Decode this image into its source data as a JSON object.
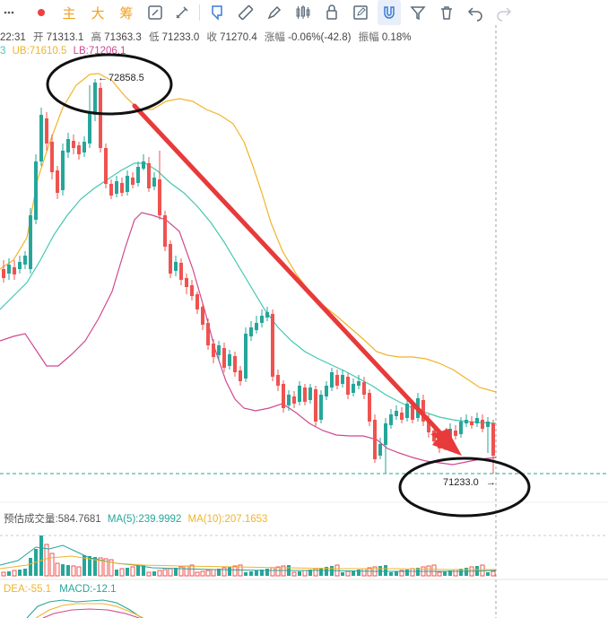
{
  "toolbar": {
    "items": [
      {
        "name": "more-icon",
        "glyph": "⋯"
      },
      {
        "name": "dot-icon",
        "glyph": "●"
      },
      {
        "text": "主"
      },
      {
        "text": "大"
      },
      {
        "text": "筹"
      }
    ]
  },
  "info": {
    "time": "22:31",
    "open_label": "开",
    "open": "71313.1",
    "high_label": "高",
    "high": "71363.3",
    "low_label": "低",
    "low": "71233.0",
    "close_label": "收",
    "close": "71270.4",
    "change_label": "涨幅",
    "change": "-0.06%(-42.8)",
    "amp_label": "振幅",
    "amp": "0.18%"
  },
  "boll": {
    "prefix": "3",
    "ub": "UB:71610.5",
    "lb": "LB:71206.1"
  },
  "annotations": {
    "high_price": "72858.5",
    "low_price": "71233.0"
  },
  "volume": {
    "est_label": "预估成交量:",
    "est": "584.7681",
    "ma5": "MA(5):239.9992",
    "ma10": "MA(10):207.1653"
  },
  "macd": {
    "dea": "DEA:-55.1",
    "macd": "MACD:-12.1"
  },
  "colors": {
    "up": "#26a69a",
    "down": "#ef5350",
    "ub": "#f0b429",
    "mb": "#40c8b0",
    "lb": "#d04890",
    "arrow": "#e83a3a",
    "accent_toolbar": "#f0a020",
    "icon": "#5a6a7a",
    "icon_active": "#3a7bd5"
  },
  "chart_data": {
    "type": "candlestick",
    "high_marker": 72858.5,
    "low_marker": 71233.0
  }
}
